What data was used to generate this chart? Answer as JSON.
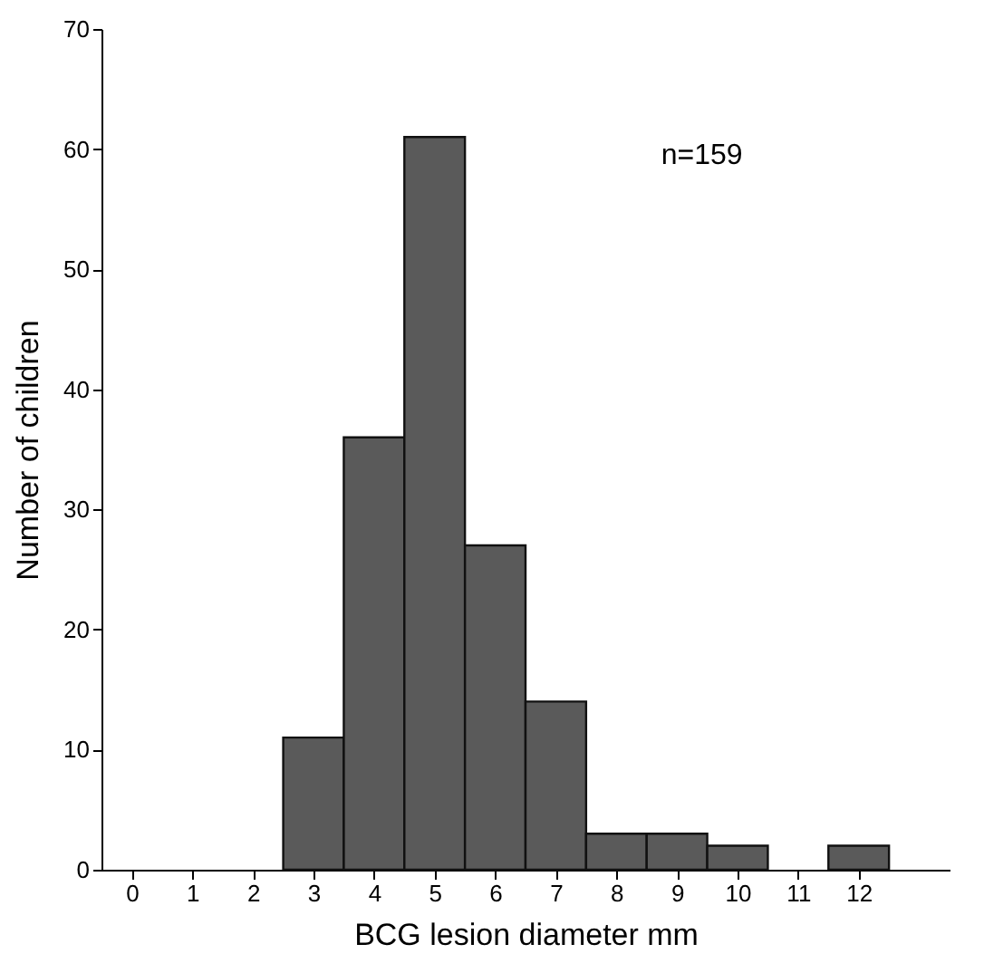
{
  "chart_data": {
    "type": "histogram",
    "xlabel": "BCG lesion diameter mm",
    "ylabel": "Number of children",
    "bins": [
      2.5,
      3.5,
      4.5,
      5.5,
      6.5,
      7.5,
      8.5,
      9.5,
      10.5,
      11.5,
      12.5
    ],
    "values": [
      11,
      36,
      61,
      27,
      14,
      3,
      3,
      2,
      0,
      2
    ],
    "color": "#5a5a5a",
    "xlim": [
      -0.5,
      13.5
    ],
    "xticks": [
      0,
      1,
      2,
      3,
      4,
      5,
      6,
      7,
      8,
      9,
      10,
      11,
      12
    ],
    "ylim": [
      0,
      70
    ],
    "yticks": [
      0,
      10,
      20,
      30,
      40,
      50,
      60,
      70
    ],
    "annotations": [
      "n=159"
    ],
    "grid": false
  }
}
